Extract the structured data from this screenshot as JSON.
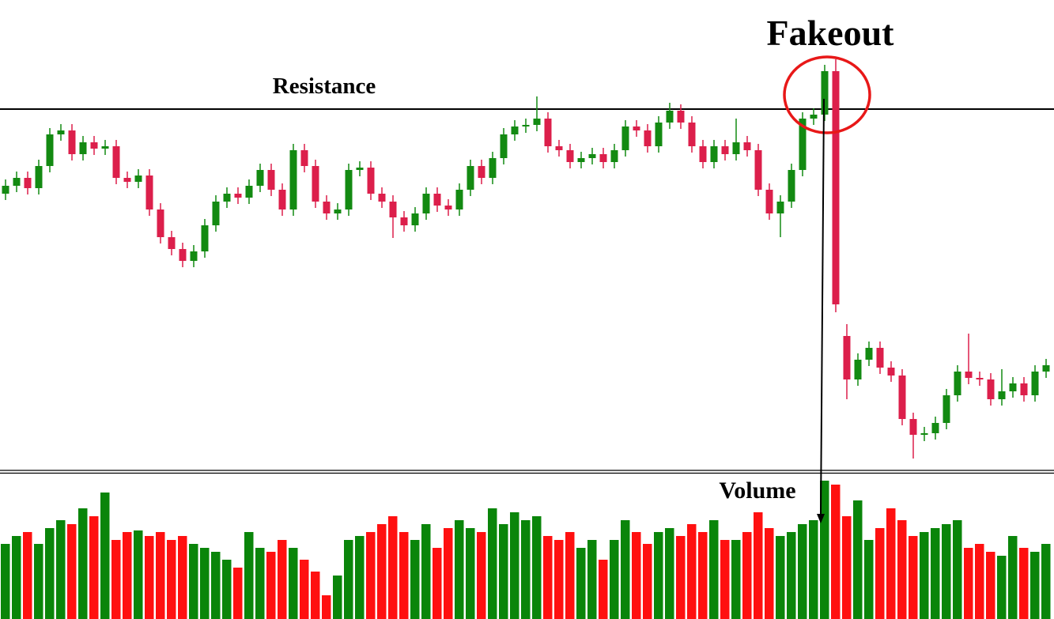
{
  "chart_data": {
    "type": "candlestick",
    "annotations": {
      "fakeout": "Fakeout",
      "resistance_label": "Resistance",
      "volume_label": "Volume"
    },
    "resistance": 462,
    "ylim": [
      5,
      600
    ],
    "volume_ylim": [
      0,
      175
    ],
    "up_color": "#138a12",
    "down_color": "#dc1f4b",
    "volume_up_color": "#0a850a",
    "volume_down_color": "#ff1010",
    "open": [
      355,
      365,
      375,
      362,
      390,
      430,
      435,
      405,
      420,
      412,
      415,
      375,
      370,
      378,
      335,
      300,
      285,
      270,
      282,
      315,
      345,
      355,
      350,
      365,
      385,
      360,
      335,
      410,
      390,
      345,
      330,
      335,
      385,
      388,
      355,
      345,
      325,
      315,
      330,
      355,
      340,
      335,
      360,
      390,
      375,
      400,
      430,
      440,
      442,
      450,
      415,
      410,
      395,
      400,
      405,
      395,
      410,
      440,
      435,
      415,
      445,
      460,
      445,
      415,
      395,
      415,
      405,
      420,
      410,
      360,
      330,
      345,
      385,
      450,
      455,
      510,
      175,
      120,
      145,
      160,
      135,
      125,
      70,
      50,
      52,
      65,
      100,
      130,
      122,
      120,
      95,
      105,
      115,
      100,
      130
    ],
    "high": [
      373,
      383,
      383,
      398,
      438,
      443,
      443,
      428,
      428,
      423,
      423,
      383,
      386,
      386,
      343,
      308,
      293,
      290,
      323,
      353,
      363,
      363,
      373,
      393,
      393,
      368,
      418,
      418,
      398,
      353,
      343,
      393,
      396,
      396,
      363,
      353,
      333,
      338,
      363,
      363,
      348,
      368,
      398,
      398,
      408,
      438,
      448,
      450,
      478,
      458,
      423,
      418,
      408,
      413,
      413,
      418,
      448,
      448,
      443,
      453,
      470,
      468,
      453,
      423,
      423,
      423,
      450,
      428,
      418,
      368,
      353,
      393,
      458,
      463,
      518,
      525,
      190,
      153,
      168,
      168,
      143,
      133,
      78,
      60,
      73,
      108,
      138,
      178,
      130,
      128,
      133,
      123,
      123,
      138,
      146
    ],
    "low": [
      347,
      357,
      354,
      354,
      382,
      422,
      397,
      397,
      404,
      404,
      367,
      362,
      362,
      327,
      292,
      277,
      262,
      262,
      274,
      307,
      337,
      342,
      342,
      357,
      352,
      327,
      327,
      382,
      337,
      322,
      322,
      327,
      377,
      347,
      337,
      299,
      307,
      307,
      322,
      332,
      327,
      327,
      352,
      367,
      367,
      392,
      422,
      432,
      434,
      407,
      402,
      387,
      387,
      392,
      387,
      387,
      402,
      427,
      407,
      407,
      437,
      437,
      407,
      387,
      387,
      397,
      397,
      402,
      352,
      322,
      300,
      337,
      377,
      442,
      447,
      205,
      95,
      112,
      137,
      127,
      117,
      62,
      20,
      42,
      44,
      57,
      92,
      114,
      112,
      87,
      87,
      97,
      92,
      92,
      122
    ],
    "close": [
      365,
      375,
      362,
      390,
      430,
      435,
      405,
      420,
      412,
      415,
      375,
      370,
      378,
      335,
      300,
      285,
      270,
      282,
      315,
      345,
      355,
      350,
      365,
      385,
      360,
      335,
      410,
      390,
      345,
      330,
      335,
      385,
      388,
      355,
      345,
      325,
      315,
      330,
      355,
      340,
      335,
      360,
      390,
      375,
      400,
      430,
      440,
      442,
      450,
      415,
      410,
      395,
      400,
      405,
      395,
      410,
      440,
      435,
      415,
      445,
      460,
      445,
      415,
      395,
      415,
      405,
      420,
      410,
      360,
      330,
      345,
      385,
      450,
      455,
      510,
      215,
      120,
      145,
      160,
      135,
      125,
      70,
      50,
      52,
      65,
      100,
      130,
      122,
      120,
      95,
      105,
      115,
      100,
      130,
      138
    ],
    "volume": [
      95,
      105,
      110,
      95,
      115,
      125,
      120,
      140,
      130,
      160,
      100,
      110,
      112,
      105,
      110,
      100,
      105,
      95,
      90,
      85,
      75,
      65,
      110,
      90,
      85,
      100,
      90,
      75,
      60,
      30,
      55,
      100,
      105,
      110,
      120,
      130,
      110,
      100,
      120,
      90,
      115,
      125,
      115,
      110,
      140,
      120,
      135,
      125,
      130,
      105,
      100,
      110,
      90,
      100,
      75,
      100,
      125,
      110,
      95,
      110,
      115,
      105,
      120,
      110,
      125,
      100,
      100,
      110,
      135,
      115,
      105,
      110,
      120,
      125,
      175,
      170,
      130,
      150,
      100,
      115,
      140,
      125,
      105,
      110,
      115,
      120,
      125,
      90,
      95,
      85,
      80,
      105,
      90,
      85,
      95
    ]
  }
}
